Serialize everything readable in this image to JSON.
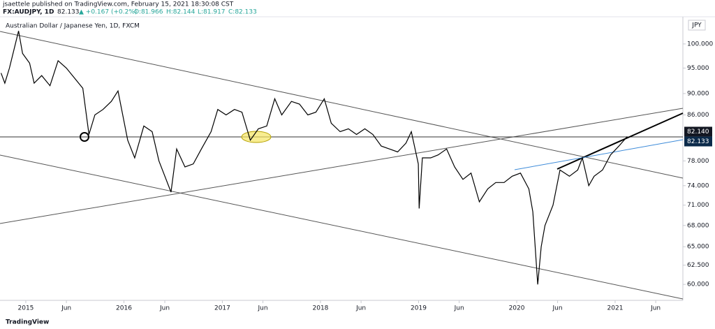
{
  "header": {
    "publisher": "jsaettele published on TradingView.com, February 15, 2021 18:30:08 CST",
    "symbol": "FX:AUDJPY, 1D",
    "last": "82.133",
    "change": "▲ +0.167 (+0.2%)",
    "ohlc": [
      "O:81.966",
      "H:82.144",
      "L:81.917",
      "C:82.133"
    ],
    "footer": "TradingView"
  },
  "chart_data": {
    "type": "line",
    "title": "Australian Dollar / Japanese Yen, 1D, FXCM",
    "currency": "JPY",
    "log_scale": true,
    "grid": false,
    "x": [
      "2014-10-01",
      "2014-10-15",
      "2014-11-01",
      "2014-12-05",
      "2014-12-20",
      "2015-01-15",
      "2015-02-01",
      "2015-03-01",
      "2015-04-01",
      "2015-05-01",
      "2015-06-01",
      "2015-07-01",
      "2015-08-01",
      "2015-08-24",
      "2015-09-15",
      "2015-10-15",
      "2015-11-15",
      "2015-12-10",
      "2016-01-15",
      "2016-02-10",
      "2016-03-15",
      "2016-04-15",
      "2016-05-10",
      "2016-06-24",
      "2016-07-15",
      "2016-08-15",
      "2016-09-15",
      "2016-10-15",
      "2016-11-20",
      "2016-12-15",
      "2017-01-15",
      "2017-02-15",
      "2017-03-15",
      "2017-04-15",
      "2017-05-15",
      "2017-06-15",
      "2017-07-15",
      "2017-08-10",
      "2017-09-15",
      "2017-10-15",
      "2017-11-15",
      "2017-12-15",
      "2018-01-15",
      "2018-02-10",
      "2018-03-15",
      "2018-04-15",
      "2018-05-15",
      "2018-06-15",
      "2018-07-15",
      "2018-08-15",
      "2018-09-15",
      "2018-10-15",
      "2018-11-15",
      "2018-12-05",
      "2018-12-31",
      "2019-01-03",
      "2019-01-15",
      "2019-02-15",
      "2019-03-15",
      "2019-04-15",
      "2019-05-15",
      "2019-06-15",
      "2019-07-15",
      "2019-08-15",
      "2019-09-15",
      "2019-10-15",
      "2019-11-15",
      "2019-12-15",
      "2020-01-15",
      "2020-02-15",
      "2020-03-01",
      "2020-03-19",
      "2020-04-01",
      "2020-04-15",
      "2020-05-15",
      "2020-06-10",
      "2020-07-15",
      "2020-08-15",
      "2020-09-01",
      "2020-09-25",
      "2020-10-15",
      "2020-11-15",
      "2020-12-15",
      "2021-01-15",
      "2021-02-15"
    ],
    "series": [
      {
        "name": "AUDJPY",
        "color": "#000000",
        "values": [
          94,
          92,
          95,
          102.8,
          98,
          96,
          92,
          93.5,
          91.5,
          96.5,
          95,
          93,
          91,
          82.5,
          86,
          87,
          88.5,
          90.5,
          81.5,
          78.5,
          84,
          83,
          78,
          73,
          80,
          77,
          77.5,
          80,
          83,
          87,
          86,
          87,
          86.5,
          81.5,
          83.5,
          84,
          89,
          86,
          88.5,
          88,
          86,
          86.5,
          89,
          84.5,
          83,
          83.5,
          82.5,
          83.5,
          82.5,
          80.5,
          80,
          79.5,
          81,
          83,
          77.5,
          70.5,
          78.5,
          78.5,
          79,
          80,
          77,
          75,
          76,
          71.5,
          73.5,
          74.5,
          74.5,
          75.5,
          76,
          73.5,
          70,
          60,
          65,
          68,
          71,
          76.5,
          75.5,
          76.5,
          78.5,
          74,
          75.5,
          76.5,
          79,
          80.5,
          82.133
        ]
      }
    ],
    "price_labels": [
      {
        "value": 82.14,
        "label": "82.140",
        "color": "#131722"
      },
      {
        "value": 82.133,
        "label": "82.133",
        "color": "#0b2a4a"
      }
    ],
    "xlim": [
      "2014-09-27",
      "2021-09-10"
    ],
    "xticks": [
      {
        "value": "2015-01-01",
        "label": "2015"
      },
      {
        "value": "2015-06-01",
        "label": "Jun"
      },
      {
        "value": "2016-01-01",
        "label": "2016"
      },
      {
        "value": "2016-06-01",
        "label": "Jun"
      },
      {
        "value": "2017-01-01",
        "label": "2017"
      },
      {
        "value": "2017-06-01",
        "label": "Jun"
      },
      {
        "value": "2018-01-01",
        "label": "2018"
      },
      {
        "value": "2018-06-01",
        "label": "Jun"
      },
      {
        "value": "2019-01-01",
        "label": "2019"
      },
      {
        "value": "2019-06-01",
        "label": "Jun"
      },
      {
        "value": "2020-01-01",
        "label": "2020"
      },
      {
        "value": "2020-06-01",
        "label": "Jun"
      },
      {
        "value": "2021-01-01",
        "label": "2021"
      },
      {
        "value": "2021-06-01",
        "label": "Jun"
      }
    ],
    "ylim": [
      58,
      105
    ],
    "yticks": [
      {
        "value": 100,
        "label": "100.000"
      },
      {
        "value": 95,
        "label": "95.000"
      },
      {
        "value": 90,
        "label": "90.000"
      },
      {
        "value": 86,
        "label": "86.000"
      },
      {
        "value": 78,
        "label": "78.000"
      },
      {
        "value": 74,
        "label": "74.000"
      },
      {
        "value": 71,
        "label": "71.000"
      },
      {
        "value": 68,
        "label": "68.000"
      },
      {
        "value": 65,
        "label": "65.000"
      },
      {
        "value": 62.5,
        "label": "62.500"
      },
      {
        "value": 60,
        "label": "60.000"
      }
    ]
  }
}
